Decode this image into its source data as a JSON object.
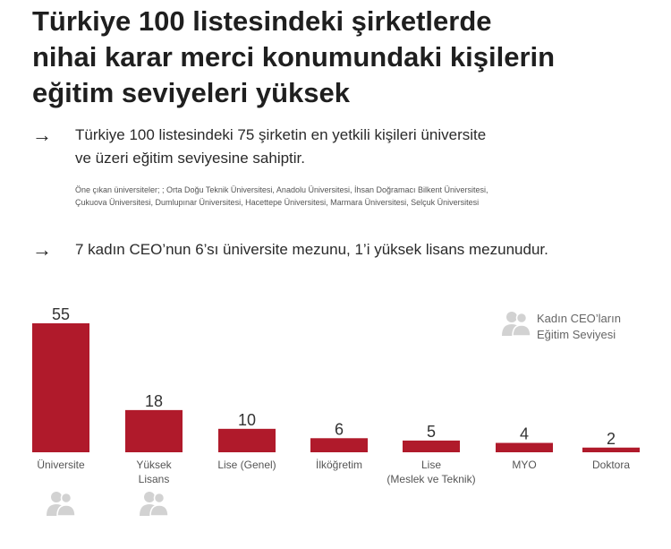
{
  "title_lines": [
    "Türkiye 100 listesindeki şirketlerde",
    "nihai karar merci konumundaki kişilerin",
    "eğitim seviyeleri yüksek"
  ],
  "arrow_symbol": "→",
  "statement1_lines": [
    "Türkiye 100 listesindeki 75 şirketin en yetkili kişileri üniversite",
    "ve üzeri eğitim seviyesine sahiptir."
  ],
  "universities_lines": [
    "Öne çıkan üniversiteler; ; Orta Doğu Teknik Üniversitesi, Anadolu Üniversitesi, İhsan Doğramacı Bilkent Üniversitesi,",
    "Çukuova Üniversitesi, Dumlupınar Üniversitesi, Hacettepe Üniversitesi, Marmara Üniversitesi, Selçuk Üniversitesi"
  ],
  "statement2": "7 kadın CEO’nun 6’sı üniversite mezunu, 1’i yüksek lisans mezunudur.",
  "legend_lines": [
    "Kadın CEO’ların",
    "Eğitim Seviyesi"
  ],
  "icons": {
    "legend": "people-icon",
    "universite_marker": "people-icon",
    "yuksek_lisans_marker": "people-icon"
  },
  "chart_data": {
    "type": "bar",
    "categories": [
      [
        "Üniversite"
      ],
      [
        "Yüksek",
        "Lisans"
      ],
      [
        "Lise (Genel)"
      ],
      [
        "İlköğretim"
      ],
      [
        "Lise",
        "(Meslek ve Teknik)"
      ],
      [
        "MYO"
      ],
      [
        "Doktora"
      ]
    ],
    "values": [
      55,
      18,
      10,
      6,
      5,
      4,
      2
    ],
    "women_ceo_markers": [
      1,
      1,
      0,
      0,
      0,
      0,
      0
    ],
    "bar_color": "#b01a2b",
    "ylim": [
      0,
      55
    ]
  }
}
